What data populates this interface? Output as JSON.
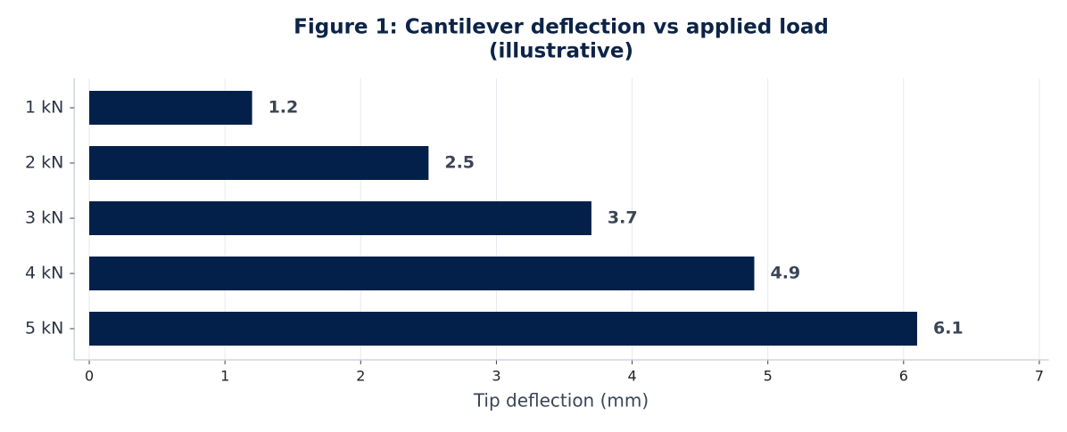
{
  "chart_data": {
    "type": "hbar",
    "title": [
      "Figure 1: Cantilever deflection vs applied load",
      "(illustrative)"
    ],
    "x_label": "Tip deflection (mm)",
    "categories": [
      "1 kN",
      "2 kN",
      "3 kN",
      "4 kN",
      "5 kN"
    ],
    "values": [
      1.2,
      2.5,
      3.7,
      4.9,
      6.1
    ],
    "color": "#03204a",
    "xlim": [
      -0.11,
      7.07
    ],
    "xticks": [
      0,
      1,
      2,
      3,
      4,
      5,
      6,
      7
    ],
    "grid": true
  }
}
